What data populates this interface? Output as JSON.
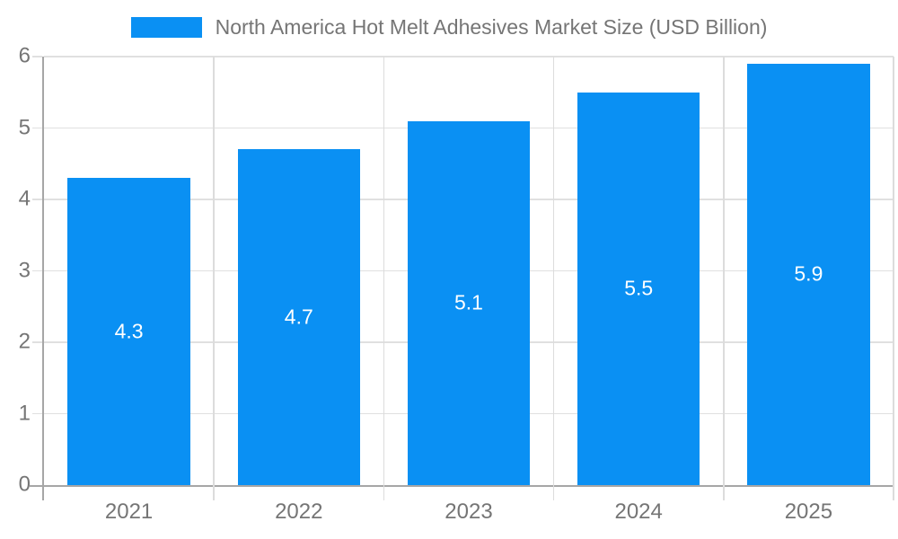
{
  "chart_data": {
    "type": "bar",
    "title": "North America Hot Melt Adhesives Market Size (USD Billion)",
    "categories": [
      "2021",
      "2022",
      "2023",
      "2024",
      "2025"
    ],
    "series": [
      {
        "name": "North America Hot Melt Adhesives Market Size (USD Billion)",
        "values": [
          4.3,
          4.7,
          5.1,
          5.5,
          5.9
        ]
      }
    ],
    "data_labels": [
      "4.3",
      "4.7",
      "5.1",
      "5.5",
      "5.9"
    ],
    "xlabel": "",
    "ylabel": "",
    "ylim": [
      0,
      6
    ],
    "yticks": [
      0,
      1,
      2,
      3,
      4,
      5,
      6
    ],
    "grid": true,
    "legend_position": "top-center",
    "colors": {
      "bar": "#0A90F3",
      "bar_label_text": "#ffffff",
      "axis_text": "#757575",
      "gridline_horizontal": "#e0e0e0",
      "gridline_vertical": "#dcdcdc",
      "axis_line": "#a6a6a6"
    }
  }
}
